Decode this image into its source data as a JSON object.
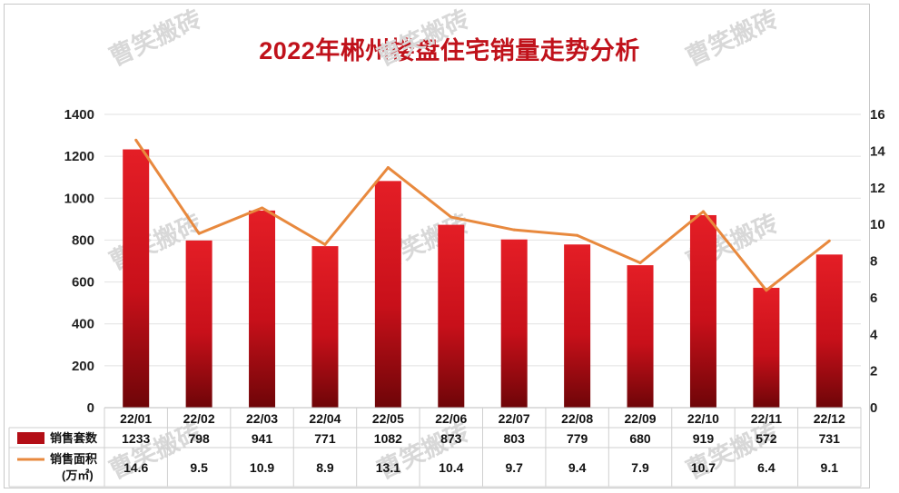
{
  "chart_data": {
    "type": "bar+line",
    "title": "2022年郴州楼盘住宅销量走势分析",
    "categories": [
      "22/01",
      "22/02",
      "22/03",
      "22/04",
      "22/05",
      "22/06",
      "22/07",
      "22/08",
      "22/09",
      "22/10",
      "22/11",
      "22/12"
    ],
    "series": [
      {
        "name": "销售套数",
        "type": "bar",
        "axis": "left",
        "color": "#c8101a",
        "values": [
          1233,
          798,
          941,
          771,
          1082,
          873,
          803,
          779,
          680,
          919,
          572,
          731
        ]
      },
      {
        "name": "销售面积",
        "unit": "(万㎡)",
        "type": "line",
        "axis": "right",
        "color": "#e8893e",
        "values": [
          14.6,
          9.5,
          10.9,
          8.9,
          13.1,
          10.4,
          9.7,
          9.4,
          7.9,
          10.7,
          6.4,
          9.1
        ]
      }
    ],
    "y_left": {
      "min": 0,
      "max": 1400,
      "ticks": [
        0,
        200,
        400,
        600,
        800,
        1000,
        1200,
        1400
      ]
    },
    "y_right": {
      "min": 0,
      "max": 16,
      "ticks": [
        0,
        2,
        4,
        6,
        8,
        10,
        12,
        14,
        16
      ]
    },
    "table": {
      "show": true,
      "values_displayed": [
        [
          "1233",
          "798",
          "941",
          "771",
          "1082",
          "873",
          "803",
          "779",
          "680",
          "919",
          "572",
          "731"
        ],
        [
          "14.6",
          "9.5",
          "10.9",
          "8.9",
          "13.1",
          "10.4",
          "9.7",
          "9.4",
          "7.9",
          "10.7",
          "6.4",
          "9.1"
        ]
      ]
    }
  },
  "watermark": "曹笑搬砖"
}
